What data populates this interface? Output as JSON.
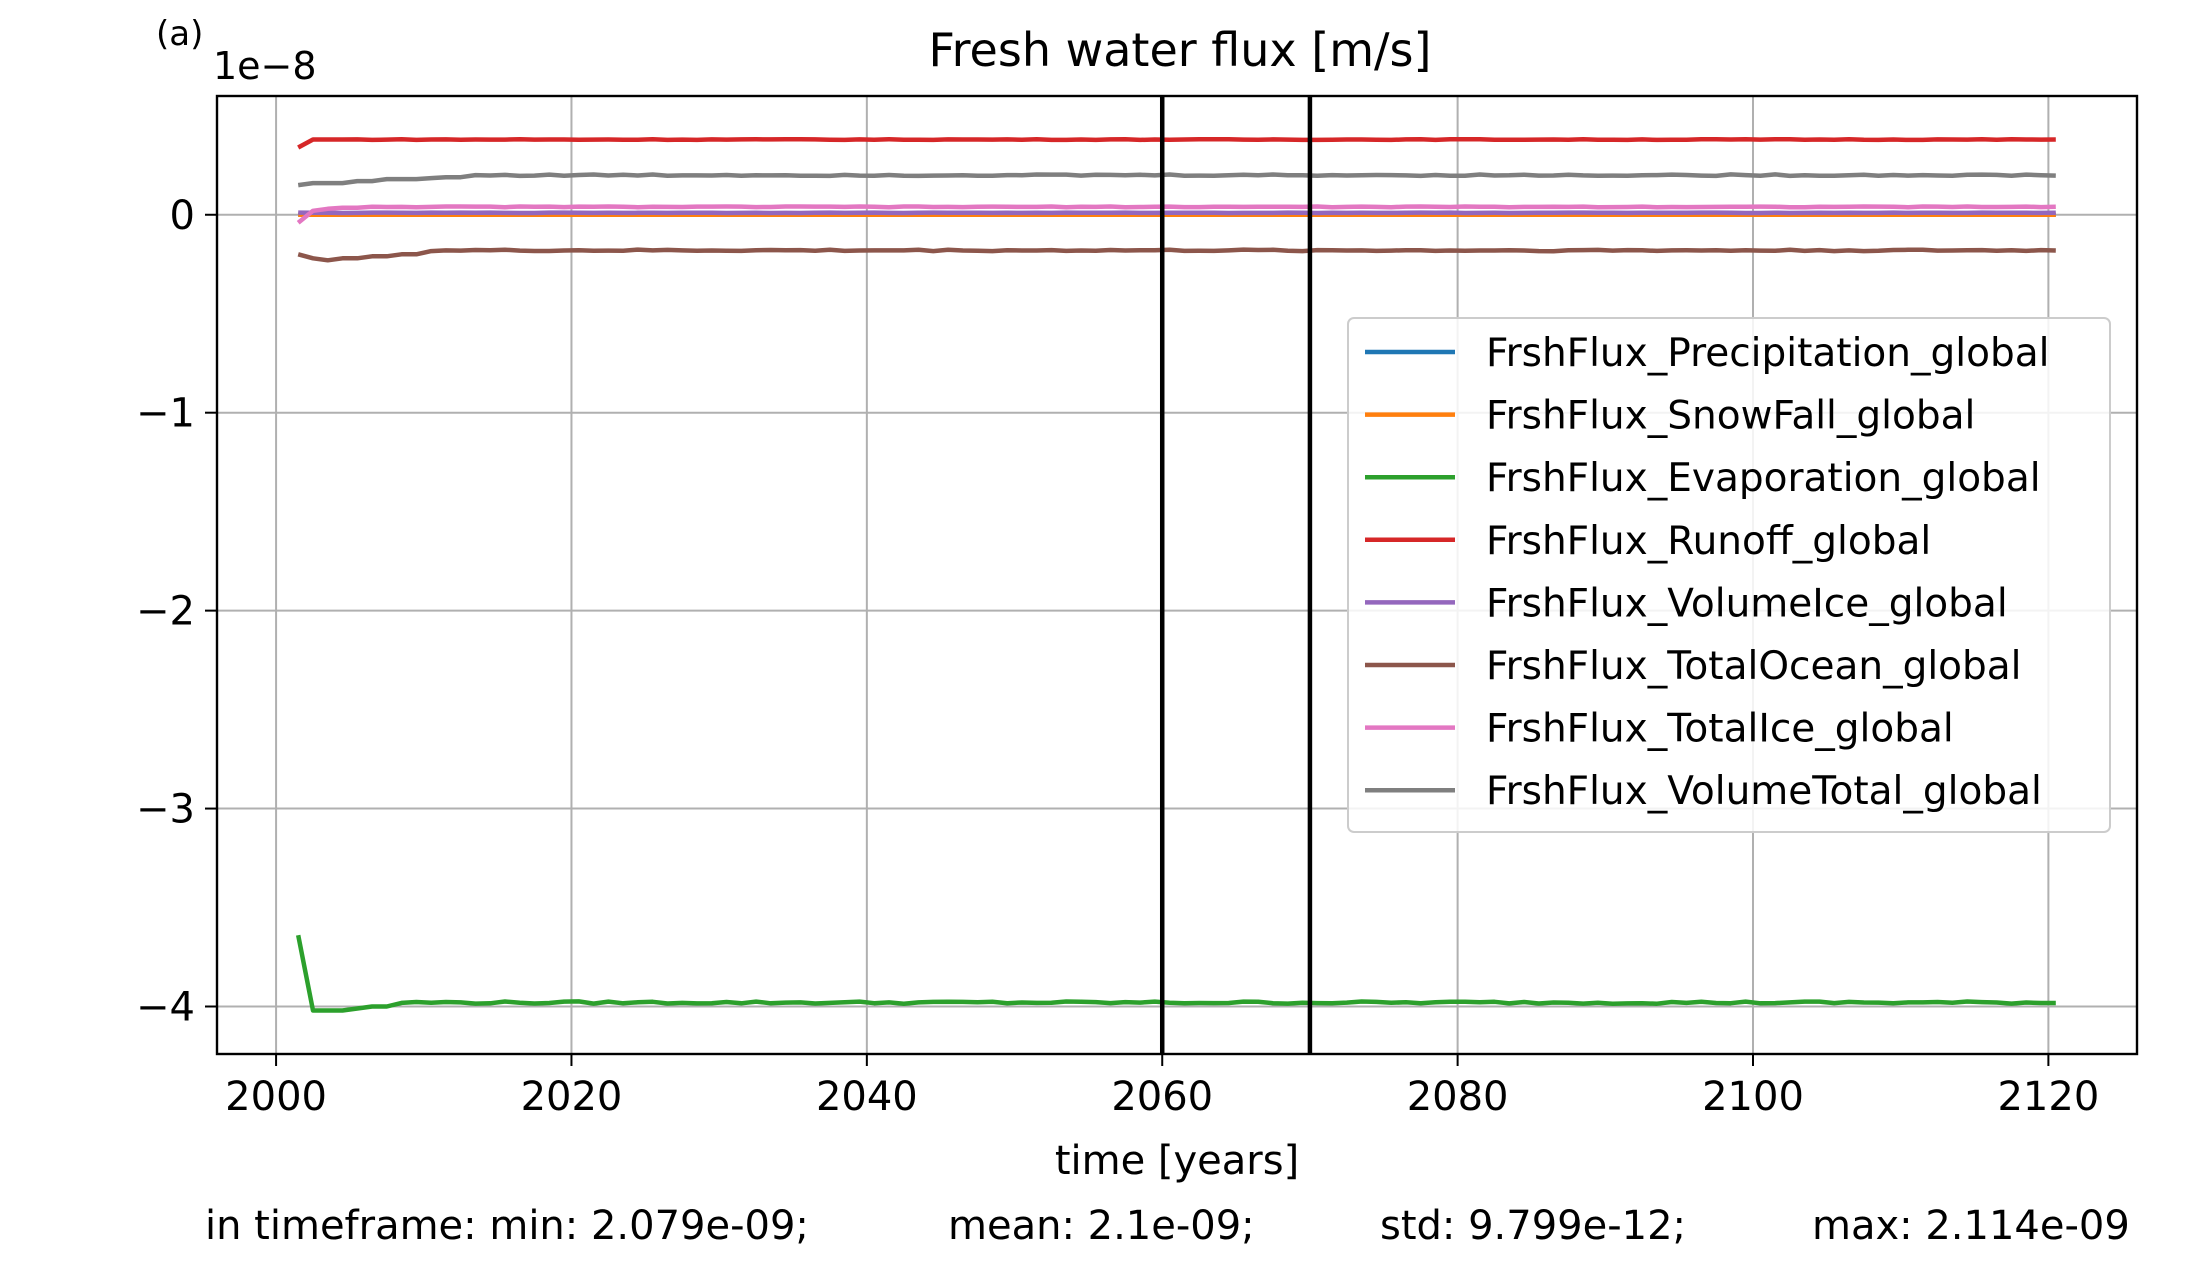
{
  "panel_label": "(a)",
  "stats": {
    "min": "in timeframe: min: 2.079e-09;",
    "mean": "mean: 2.1e-09;",
    "std": "std: 9.799e-12;",
    "max": "max: 2.114e-09"
  },
  "chart_data": {
    "type": "line",
    "title": "Fresh water flux [m/s]",
    "xlabel": "time [years]",
    "ylabel": "",
    "y_offset_label": "1e−8",
    "xlim": [
      1996,
      2126
    ],
    "ylim": [
      -4.24,
      0.6
    ],
    "xticks": [
      2000,
      2020,
      2040,
      2060,
      2080,
      2100,
      2120
    ],
    "xtick_labels": [
      "2000",
      "2020",
      "2040",
      "2060",
      "2080",
      "2100",
      "2120"
    ],
    "yticks": [
      0,
      -1,
      -2,
      -3,
      -4
    ],
    "ytick_labels": [
      "0",
      "−1",
      "−2",
      "−3",
      "−4"
    ],
    "grid": true,
    "legend_position": "center-right",
    "vlines": [
      2060,
      2070
    ],
    "x_range": [
      2001.5,
      2120.5
    ],
    "series": [
      {
        "name": "FrshFlux_Precipitation_global",
        "color": "#1f77b4",
        "start": [],
        "steady": 0.0,
        "noise": 0
      },
      {
        "name": "FrshFlux_SnowFall_global",
        "color": "#ff7f0e",
        "start": [],
        "steady": 0.0,
        "noise": 0
      },
      {
        "name": "FrshFlux_Evaporation_global",
        "color": "#2ca02c",
        "start": [
          -3.64,
          -4.02,
          -4.02,
          -4.02,
          -4.01,
          -4.0,
          -4.0
        ],
        "steady": -3.98,
        "noise": 0.006
      },
      {
        "name": "FrshFlux_Runoff_global",
        "color": "#d62728",
        "start": [
          0.34,
          0.38,
          0.38
        ],
        "steady": 0.38,
        "noise": 0.002
      },
      {
        "name": "FrshFlux_VolumeIce_global",
        "color": "#9467bd",
        "start": [],
        "steady": 0.01,
        "noise": 0.001
      },
      {
        "name": "FrshFlux_TotalOcean_global",
        "color": "#8c564b",
        "start": [
          -0.2,
          -0.22,
          -0.23,
          -0.22,
          -0.22,
          -0.21,
          -0.21,
          -0.2,
          -0.2
        ],
        "steady": -0.18,
        "noise": 0.004
      },
      {
        "name": "FrshFlux_TotalIce_global",
        "color": "#e377c2",
        "start": [
          -0.04,
          0.02,
          0.03,
          0.035,
          0.035,
          0.04
        ],
        "steady": 0.04,
        "noise": 0.002
      },
      {
        "name": "FrshFlux_VolumeTotal_global",
        "color": "#7f7f7f",
        "start": [
          0.15,
          0.16,
          0.16,
          0.16,
          0.17,
          0.17,
          0.18,
          0.18,
          0.18,
          0.185,
          0.19,
          0.19
        ],
        "steady": 0.2,
        "noise": 0.004
      }
    ]
  }
}
